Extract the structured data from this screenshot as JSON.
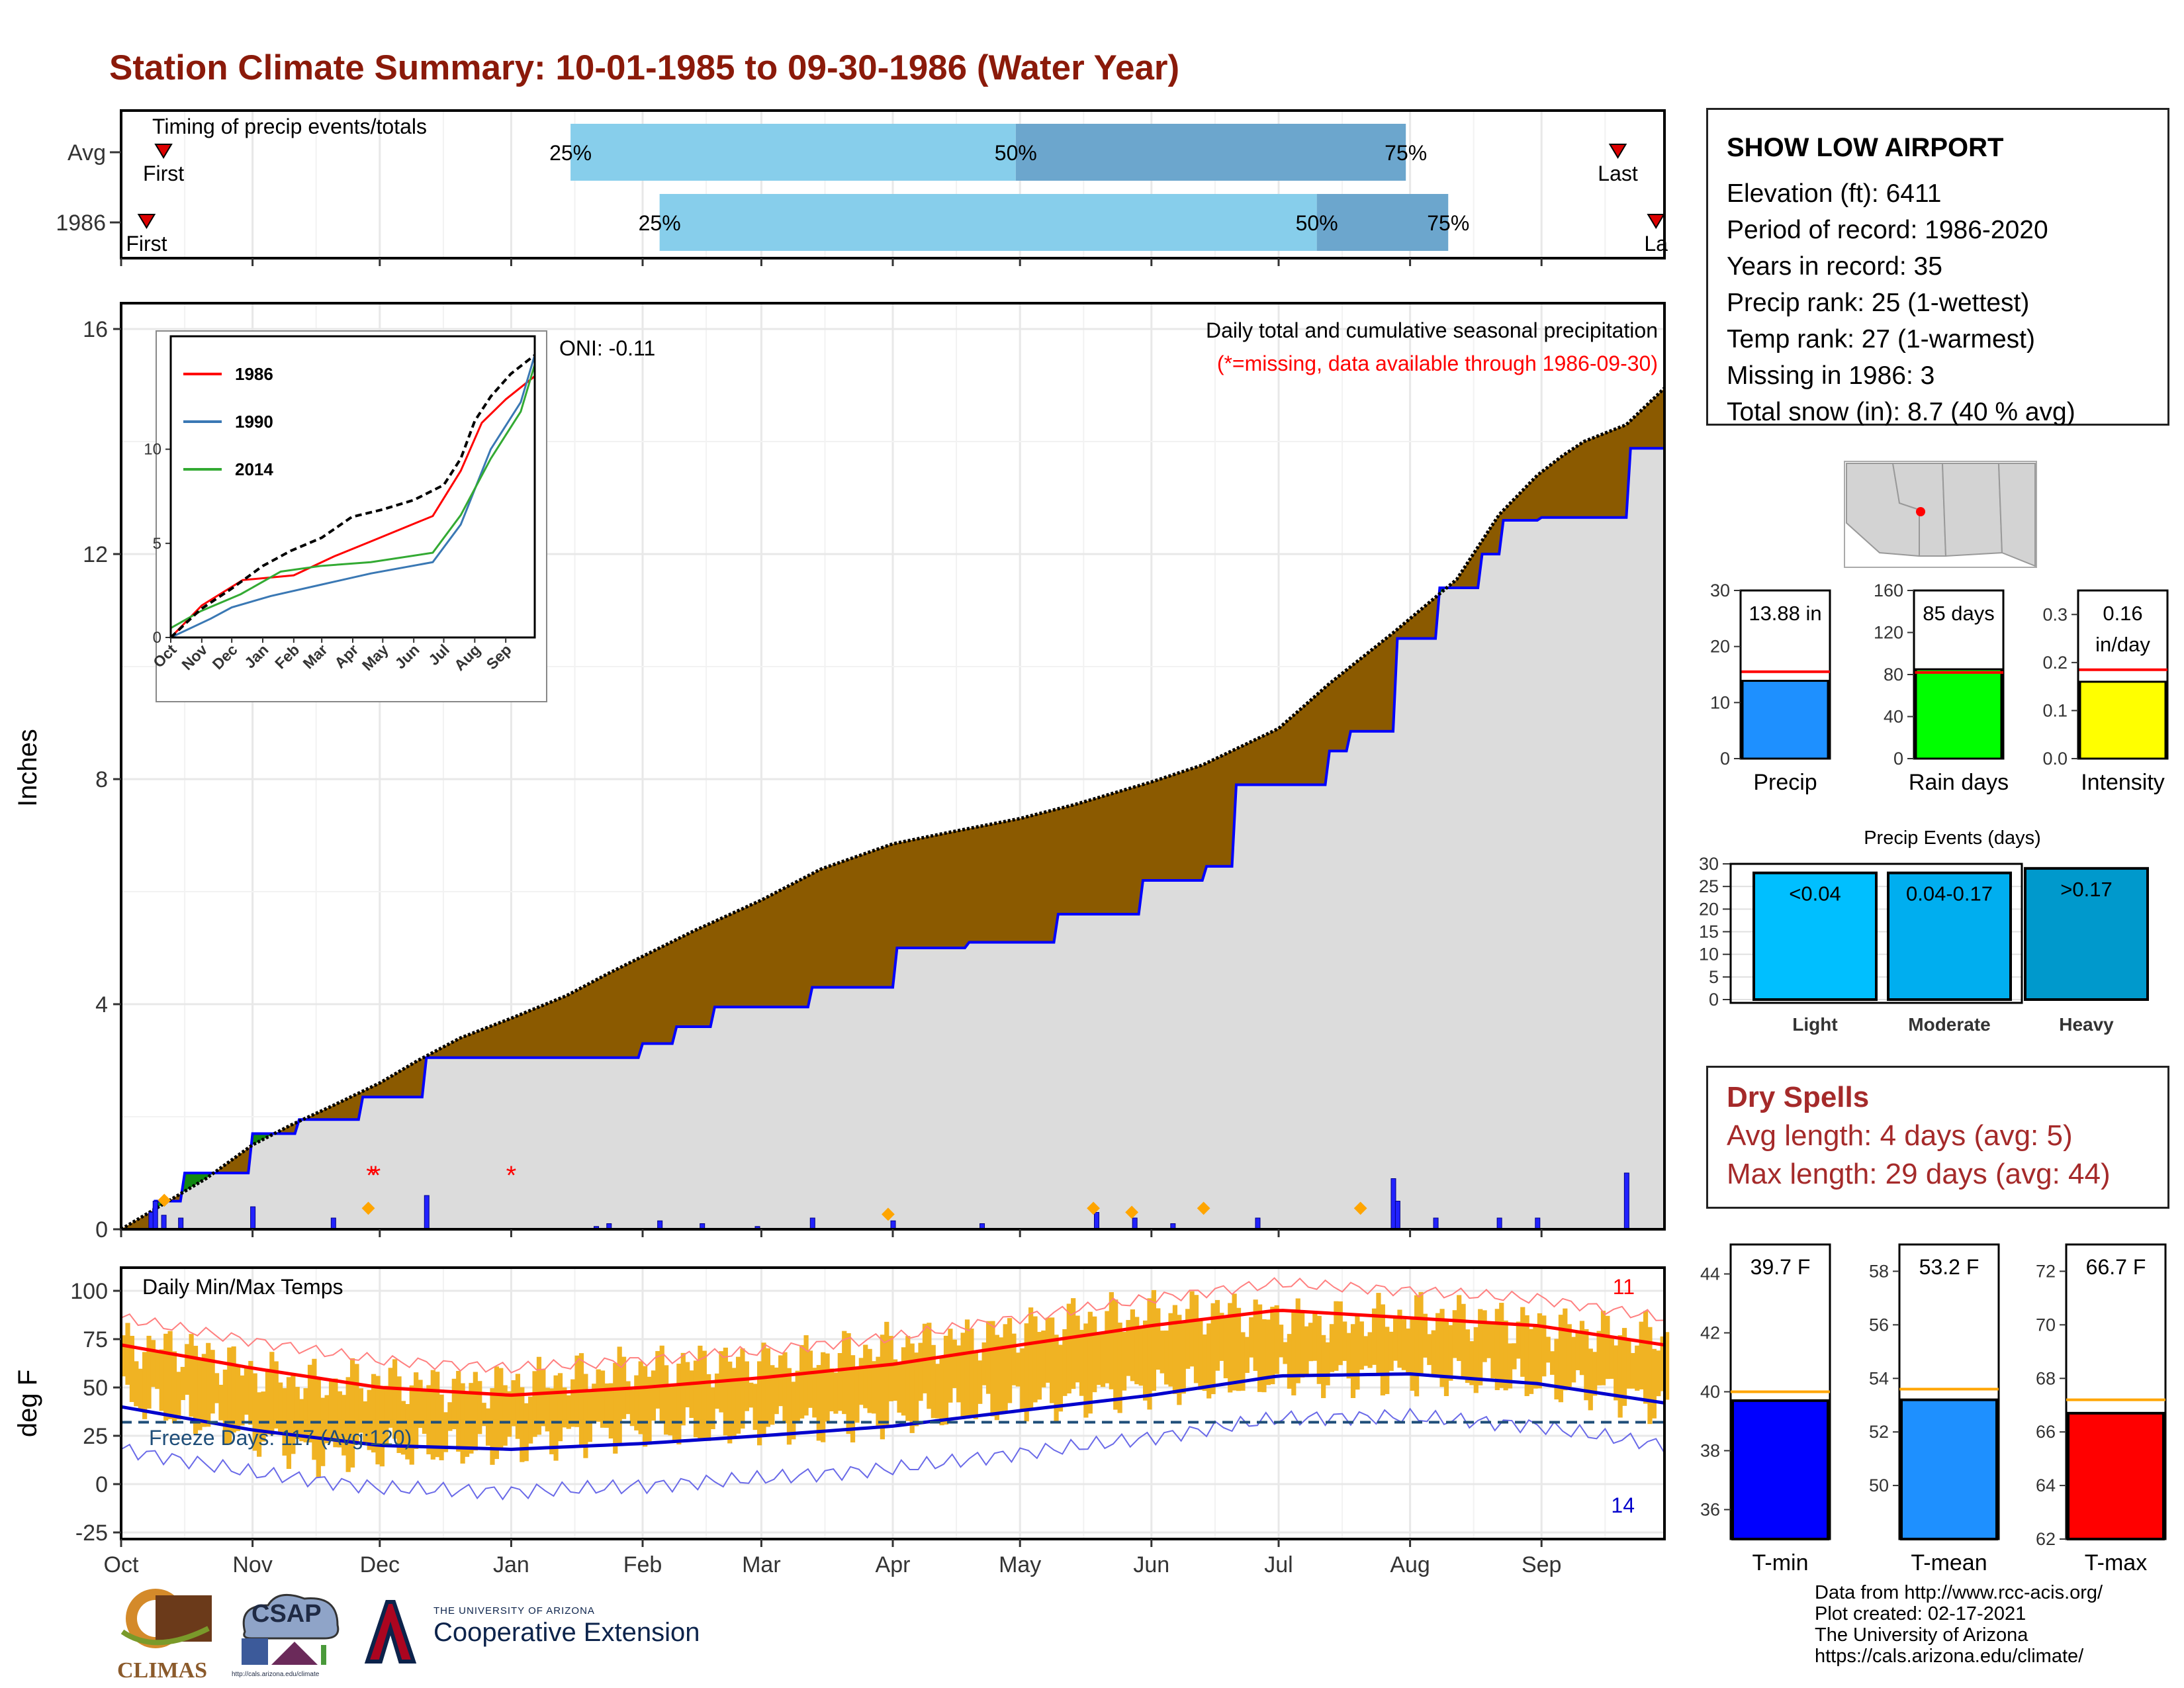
{
  "title": "Station Climate Summary: 10-01-1985 to 09-30-1986 (Water Year)",
  "colors": {
    "title": "#8B1A0A",
    "deficit_fill": "#8B5A00",
    "surplus_fill": "#118811",
    "observed_fill": "#DCDCDC",
    "observed_line": "#0000FF",
    "timing_light": "#87CEEB",
    "timing_dark": "#6CA6CD",
    "temp_bar": "#F0B323",
    "avg_max_line": "#FF0000",
    "avg_min_line": "#0000CC",
    "freeze_line": "#1F4E79",
    "dry_spells": "#A52A2A"
  },
  "timing": {
    "label": "Timing of precip events/totals",
    "rows": [
      {
        "label": "Avg",
        "first_label": "First",
        "last_label": "Last",
        "first_date": "1985-10-11",
        "last_date": "1986-09-19",
        "p25": "1986-01-15",
        "p50": "1986-04-30",
        "p75": "1986-07-31",
        "p25_label": "25%",
        "p50_label": "50%",
        "p75_label": "75%"
      },
      {
        "label": "1986",
        "first_label": "First",
        "last_label": "La",
        "first_date": "1985-10-07",
        "last_date": "1986-09-28",
        "p25": "1986-02-05",
        "p50": "1986-07-10",
        "p75": "1986-08-10",
        "p25_label": "25%",
        "p50_label": "50%",
        "p75_label": "75%"
      }
    ]
  },
  "precip_panel": {
    "ylabel": "Inches",
    "oni": "ONI: -0.11",
    "label1": "Daily total and cumulative seasonal precipitation",
    "label2": "(*=missing, data available through 1986-09-30)",
    "yticks": [
      "0",
      "4",
      "8",
      "12",
      "16"
    ]
  },
  "inset": {
    "yticks": [
      "0",
      "5",
      "10"
    ],
    "xticks": [
      "Oct",
      "Nov",
      "Dec",
      "Jan",
      "Feb",
      "Mar",
      "Apr",
      "May",
      "Jun",
      "Jul",
      "Aug",
      "Sep"
    ],
    "legend": [
      {
        "name": "1986",
        "color": "#FF0000"
      },
      {
        "name": "1990",
        "color": "#3A78B4"
      },
      {
        "name": "2014",
        "color": "#33AA33"
      }
    ]
  },
  "temp_panel": {
    "ylabel": "deg F",
    "label": "Daily Min/Max Temps",
    "freeze_label": "Freeze Days: 117 (Avg:120)",
    "record_high_count": "11",
    "record_low_count": "14",
    "yticks": [
      "100",
      "75",
      "50",
      "25",
      "0",
      "-25"
    ]
  },
  "month_labels": [
    "Oct",
    "Nov",
    "Dec",
    "Jan",
    "Feb",
    "Mar",
    "Apr",
    "May",
    "Jun",
    "Jul",
    "Aug",
    "Sep"
  ],
  "station": {
    "name": "SHOW LOW AIRPORT",
    "lines": [
      "Elevation (ft): 6411",
      "Period of record: 1986-2020",
      "Years in record: 35",
      "Precip rank: 25 (1-wettest)",
      "Temp rank: 27 (1-warmest)",
      "Missing in 1986: 3",
      "Total snow (in): 8.7 (40 % avg)"
    ]
  },
  "summary_bars": [
    {
      "label": "Precip",
      "value": 13.88,
      "avg": 15.5,
      "value_text": "13.88 in",
      "ymax": 30,
      "yticks": [
        "0",
        "10",
        "20",
        "30"
      ],
      "color": "#1E90FF"
    },
    {
      "label": "Rain days",
      "value": 85,
      "avg": 82,
      "value_text": "85 days",
      "ymax": 160,
      "yticks": [
        "0",
        "40",
        "80",
        "120",
        "160"
      ],
      "color": "#00FF00"
    },
    {
      "label": "Intensity",
      "value": 0.16,
      "avg": 0.185,
      "value_text": "0.16",
      "value_text2": "in/day",
      "ymax": 0.35,
      "yticks": [
        "0.0",
        "0.1",
        "0.2",
        "0.3"
      ],
      "color": "#FFFF00"
    }
  ],
  "precip_events": {
    "title": "Precip Events (days)",
    "yticks": [
      "0",
      "5",
      "10",
      "15",
      "20",
      "25",
      "30"
    ],
    "bars": [
      {
        "label": "Light",
        "range": "<0.04",
        "value": 28,
        "color": "#00BFFF"
      },
      {
        "label": "Moderate",
        "range": "0.04-0.17",
        "value": 28,
        "color": "#00AEEF"
      },
      {
        "label": "Heavy",
        "range": ">0.17",
        "value": 29,
        "color": "#0099CC"
      }
    ]
  },
  "dry_spells": {
    "title": "Dry Spells",
    "line1": "Avg length: 4 days (avg: 5)",
    "line2": "Max length: 29 days (avg: 44)"
  },
  "temp_bars": [
    {
      "label": "T-min",
      "value": 39.7,
      "avg": 40.0,
      "value_text": "39.7 F",
      "ymin": 35,
      "ymax": 45,
      "yticks": [
        "36",
        "38",
        "40",
        "42",
        "44"
      ],
      "color": "#0000FF"
    },
    {
      "label": "T-mean",
      "value": 53.2,
      "avg": 53.6,
      "value_text": "53.2 F",
      "ymin": 48,
      "ymax": 59,
      "yticks": [
        "50",
        "52",
        "54",
        "56",
        "58"
      ],
      "color": "#1E90FF"
    },
    {
      "label": "T-max",
      "value": 66.7,
      "avg": 67.2,
      "value_text": "66.7 F",
      "ymin": 62,
      "ymax": 73,
      "yticks": [
        "62",
        "64",
        "66",
        "68",
        "70",
        "72"
      ],
      "color": "#FF0000"
    }
  ],
  "footer": {
    "lines": [
      "Data from http://www.rcc-acis.org/",
      "Plot created: 02-17-2021",
      "The University of Arizona",
      "https://cals.arizona.edu/climate/"
    ],
    "climas": "CLIMAS",
    "csap": "CSAP",
    "csap_url": "http://cals.arizona.edu/climate",
    "ua_small": "THE UNIVERSITY OF ARIZONA",
    "ua_big": "Cooperative Extension"
  },
  "chart_data": [
    {
      "type": "area",
      "title": "Daily total and cumulative seasonal precipitation",
      "ylabel": "Inches",
      "ylim": [
        0,
        16
      ],
      "x_is": "day of water year (0 = Oct 1, 1985)",
      "series": [
        {
          "name": "Avg",
          "x": [
            0,
            10,
            20,
            31,
            40,
            50,
            61,
            70,
            80,
            92,
            105,
            115,
            123,
            135,
            151,
            165,
            182,
            195,
            212,
            225,
            243,
            255,
            273,
            285,
            300,
            315,
            325,
            334,
            340,
            345,
            355,
            364
          ],
          "values": [
            0,
            0.45,
            0.9,
            1.5,
            1.85,
            2.2,
            2.6,
            3.0,
            3.4,
            3.75,
            4.15,
            4.55,
            4.85,
            5.3,
            5.85,
            6.4,
            6.85,
            7.05,
            7.3,
            7.55,
            7.95,
            8.25,
            8.9,
            9.7,
            10.6,
            11.55,
            12.7,
            13.4,
            13.75,
            14.0,
            14.3,
            14.95
          ]
        },
        {
          "name": "1986",
          "x": [
            0,
            7,
            8,
            14,
            15,
            30,
            31,
            41,
            42,
            56,
            57,
            71,
            72,
            122,
            123,
            130,
            131,
            139,
            140,
            162,
            163,
            182,
            183,
            199,
            200,
            220,
            221,
            240,
            241,
            255,
            256,
            262,
            263,
            284,
            285,
            289,
            290,
            300,
            301,
            310,
            311,
            320,
            321,
            325,
            326,
            334,
            335,
            355,
            356,
            364
          ],
          "values": [
            0,
            0,
            0.5,
            0.5,
            1.0,
            1.0,
            1.7,
            1.7,
            1.95,
            1.95,
            2.35,
            2.35,
            3.05,
            3.05,
            3.3,
            3.3,
            3.6,
            3.6,
            3.95,
            3.95,
            4.3,
            4.3,
            5.0,
            5.0,
            5.1,
            5.1,
            5.6,
            5.6,
            6.2,
            6.2,
            6.45,
            6.45,
            7.9,
            7.9,
            8.5,
            8.5,
            8.85,
            8.85,
            10.5,
            10.5,
            11.4,
            11.4,
            12.0,
            12.0,
            12.6,
            12.6,
            12.65,
            12.65,
            13.88,
            13.88
          ]
        }
      ],
      "daily_precip": {
        "x": [
          7,
          8,
          10,
          14,
          31,
          50,
          72,
          112,
          115,
          127,
          137,
          150,
          163,
          182,
          203,
          230,
          239,
          248,
          268,
          300,
          301,
          310,
          325,
          334,
          355
        ],
        "values": [
          0.3,
          0.5,
          0.25,
          0.2,
          0.4,
          0.2,
          0.6,
          0.05,
          0.1,
          0.15,
          0.1,
          0.05,
          0.2,
          0.15,
          0.1,
          0.3,
          0.2,
          0.1,
          0.2,
          0.9,
          0.5,
          0.2,
          0.2,
          0.2,
          1.0
        ]
      },
      "missing_days_x": [
        59,
        60,
        92
      ]
    },
    {
      "type": "line",
      "title": "",
      "x_is": "day of water year",
      "ylim": [
        0,
        16
      ],
      "xticks": [
        "Oct",
        "Nov",
        "Dec",
        "Jan",
        "Feb",
        "Mar",
        "Apr",
        "May",
        "Jun",
        "Jul",
        "Aug",
        "Sep"
      ],
      "series": [
        {
          "name": "1986",
          "x": [
            0,
            31,
            72,
            123,
            163,
            200,
            262,
            290,
            311,
            335,
            364
          ],
          "values": [
            0,
            1.7,
            3.05,
            3.3,
            4.3,
            5.1,
            6.45,
            8.85,
            11.4,
            12.65,
            13.88
          ]
        },
        {
          "name": "1990",
          "x": [
            0,
            40,
            61,
            100,
            150,
            200,
            262,
            290,
            320,
            350,
            364
          ],
          "values": [
            0,
            1.0,
            1.6,
            2.2,
            2.8,
            3.4,
            4.0,
            6.0,
            10.0,
            12.5,
            15.0
          ]
        },
        {
          "name": "2014",
          "x": [
            0,
            30,
            70,
            110,
            150,
            200,
            262,
            290,
            320,
            350,
            364
          ],
          "values": [
            0.5,
            1.4,
            2.3,
            3.5,
            3.8,
            4.0,
            4.5,
            6.5,
            9.5,
            12.0,
            14.5
          ]
        },
        {
          "x": [
            0,
            30,
            61,
            92,
            120,
            151,
            181,
            212,
            243,
            273,
            290,
            304,
            320,
            340,
            364
          ],
          "values": [
            0,
            1.5,
            2.6,
            3.8,
            4.6,
            5.3,
            6.4,
            6.8,
            7.3,
            8.1,
            9.5,
            11.5,
            12.8,
            14.0,
            15.0
          ]
        }
      ]
    },
    {
      "type": "bar",
      "title": "Daily Min/Max Temps",
      "ylabel": "deg F",
      "ylim": [
        -25,
        100
      ],
      "x_is": "day of water year",
      "series": [
        {
          "name": "Tmax",
          "x": [
            0,
            15,
            31,
            46,
            61,
            76,
            92,
            107,
            123,
            138,
            151,
            166,
            182,
            197,
            212,
            227,
            243,
            258,
            273,
            288,
            304,
            319,
            335,
            350,
            364
          ],
          "values": [
            72,
            70,
            58,
            52,
            54,
            50,
            52,
            56,
            60,
            63,
            63,
            66,
            72,
            75,
            80,
            86,
            88,
            90,
            86,
            84,
            88,
            86,
            82,
            78,
            76
          ]
        },
        {
          "name": "Tmin",
          "x": [
            0,
            15,
            31,
            46,
            61,
            76,
            92,
            107,
            123,
            138,
            151,
            166,
            182,
            197,
            212,
            227,
            243,
            258,
            273,
            288,
            304,
            319,
            335,
            350,
            364
          ],
          "values": [
            45,
            35,
            25,
            15,
            18,
            18,
            20,
            25,
            28,
            28,
            30,
            32,
            35,
            38,
            42,
            45,
            50,
            52,
            55,
            56,
            56,
            55,
            52,
            48,
            40
          ]
        }
      ],
      "avg_high": {
        "x": [
          0,
          31,
          61,
          92,
          123,
          151,
          182,
          212,
          243,
          273,
          304,
          334,
          364
        ],
        "values": [
          72,
          60,
          50,
          46,
          50,
          55,
          62,
          72,
          82,
          90,
          86,
          82,
          72
        ]
      },
      "avg_low": {
        "x": [
          0,
          31,
          61,
          92,
          123,
          151,
          182,
          212,
          243,
          273,
          304,
          334,
          364
        ],
        "values": [
          40,
          28,
          20,
          18,
          21,
          25,
          30,
          38,
          46,
          56,
          57,
          52,
          42
        ]
      },
      "freeze_line": 32
    }
  ]
}
